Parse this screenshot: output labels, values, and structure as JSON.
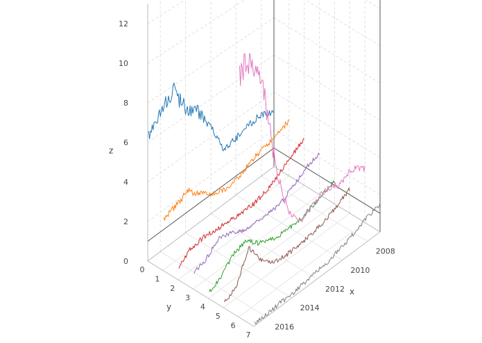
{
  "chart_data": {
    "type": "line3d",
    "title": "",
    "xlabel": "x",
    "ylabel": "y",
    "zlabel": "z",
    "x_ticks": [
      "2008",
      "2010",
      "2012",
      "2014",
      "2016"
    ],
    "y_ticks": [
      "0",
      "1",
      "2",
      "3",
      "4",
      "5",
      "6",
      "7"
    ],
    "z_ticks": [
      "0",
      "2",
      "4",
      "6",
      "8",
      "10",
      "12"
    ],
    "xlim": [
      2007,
      2017
    ],
    "ylim": [
      0,
      7
    ],
    "zlim": [
      0,
      13
    ],
    "grid": true,
    "legend": "none",
    "x": [
      2007.0,
      2008.0,
      2009.0,
      2010.0,
      2011.0,
      2012.0,
      2013.0,
      2014.0,
      2015.0,
      2016.0,
      2017.0
    ],
    "series": [
      {
        "name": "y=0",
        "y": 0,
        "color": "#1f77b4",
        "values": [
          2.9,
          3.3,
          3.2,
          3.0,
          2.9,
          4.5,
          5.8,
          6.4,
          7.8,
          7.2,
          6.3
        ]
      },
      {
        "name": "y=1",
        "y": 1,
        "color": "#ff7f0e",
        "values": [
          3.0,
          2.7,
          2.5,
          2.3,
          1.9,
          1.8,
          2.0,
          2.5,
          3.1,
          2.8,
          2.5
        ]
      },
      {
        "name": "y=2",
        "y": 2,
        "color": "#d62728",
        "values": [
          2.5,
          2.1,
          1.6,
          1.2,
          1.0,
          1.0,
          1.1,
          1.1,
          1.2,
          1.1,
          0.6
        ]
      },
      {
        "name": "y=3",
        "y": 3,
        "color": "#9467bd",
        "values": [
          2.2,
          2.0,
          1.5,
          1.1,
          1.0,
          1.0,
          1.1,
          1.4,
          1.6,
          1.0,
          0.8
        ]
      },
      {
        "name": "y=4",
        "y": 4,
        "color": "#2ca02c",
        "values": [
          1.2,
          1.0,
          0.7,
          0.5,
          0.5,
          0.6,
          0.9,
          1.5,
          1.3,
          0.6,
          0.3
        ]
      },
      {
        "name": "y=5",
        "y": 5,
        "color": "#8c564b",
        "values": [
          1.3,
          0.9,
          0.6,
          0.4,
          0.3,
          0.3,
          0.4,
          1.0,
          2.1,
          0.6,
          0.2
        ]
      },
      {
        "name": "y=6",
        "y": 6,
        "color": "#e377c2",
        "values": [
          2.9,
          3.4,
          3.0,
          3.3,
          3.0,
          2.6,
          3.4,
          6.0,
          10.5,
          12.5,
          12.3
        ]
      },
      {
        "name": "y=7",
        "y": 7,
        "color": "#7f7f7f",
        "values": [
          1.5,
          1.3,
          1.0,
          0.7,
          0.5,
          0.4,
          0.3,
          0.2,
          0.2,
          0.1,
          0.1
        ]
      }
    ]
  },
  "axes": {
    "x_title": "x",
    "y_title": "y",
    "z_title": "z"
  }
}
